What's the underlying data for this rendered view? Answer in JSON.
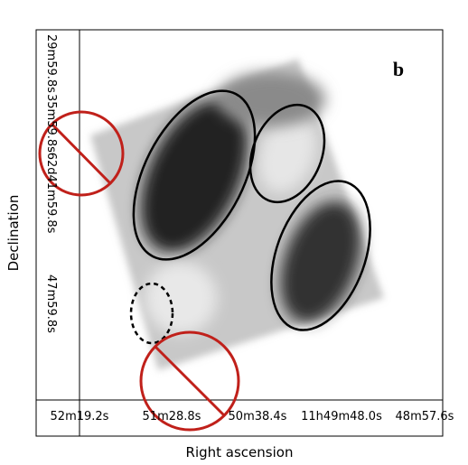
{
  "panel_label": "b",
  "x_axis": {
    "label": "Right ascension",
    "tick_labels": [
      "52m19.2s",
      "51m28.8s",
      "50m38.4s",
      "11h49m48.0s",
      "48m57.6s"
    ]
  },
  "y_axis": {
    "label": "Declination",
    "tick_labels": [
      "29m59.8s",
      "35m59.8s",
      "-62d41m59.8s",
      "47m59.8s"
    ]
  }
}
